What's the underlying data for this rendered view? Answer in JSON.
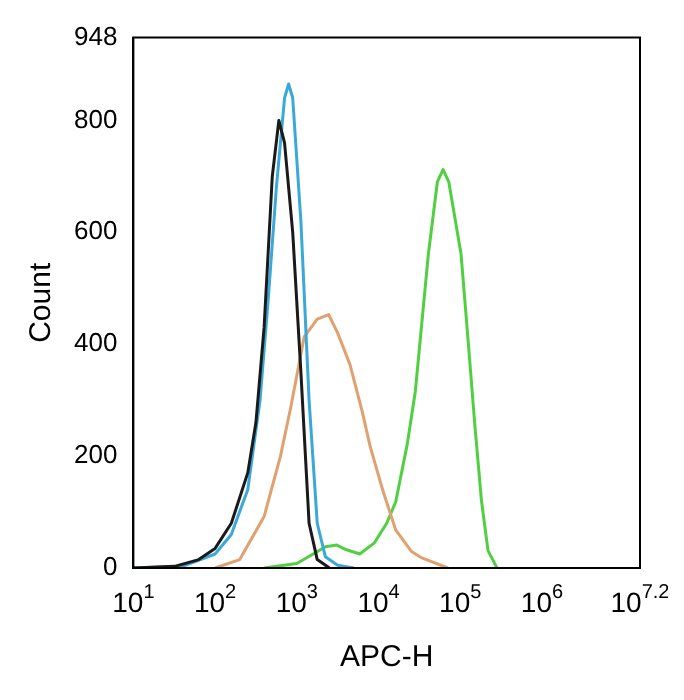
{
  "chart_data": {
    "type": "line",
    "xlabel": "APC-H",
    "ylabel": "Count",
    "log": "x",
    "grid": false,
    "legend": false,
    "marker": "none",
    "line_style": "solid",
    "xlim": [
      10,
      15848932
    ],
    "ylim": [
      0,
      948
    ],
    "xticks": [
      {
        "value": 10,
        "label": "10$^{1}$"
      },
      {
        "value": 100,
        "label": "10$^{2}$"
      },
      {
        "value": 1000,
        "label": "10$^{3}$"
      },
      {
        "value": 10000,
        "label": "10$^{4}$"
      },
      {
        "value": 100000,
        "label": "10$^{5}$"
      },
      {
        "value": 1000000,
        "label": "10$^{6}$"
      },
      {
        "value": 15848932,
        "label": "10$^{7.2}$"
      }
    ],
    "yticks": [
      0,
      200,
      400,
      600,
      800,
      948
    ],
    "series": [
      {
        "color": "#1a1a1a",
        "x": [
          10,
          32,
          63,
          100,
          158,
          251,
          316,
          398,
          501,
          603,
          708,
          891,
          1122,
          1413,
          1778,
          2512
        ],
        "values": [
          0,
          3,
          15,
          35,
          80,
          170,
          260,
          430,
          700,
          800,
          760,
          600,
          350,
          80,
          15,
          0
        ]
      },
      {
        "color": "#3aa8d8",
        "x": [
          10,
          40,
          100,
          158,
          251,
          355,
          447,
          562,
          708,
          794,
          891,
          1122,
          1413,
          1778,
          2239,
          3162,
          5012
        ],
        "values": [
          0,
          3,
          25,
          60,
          140,
          300,
          480,
          680,
          840,
          865,
          840,
          620,
          300,
          80,
          20,
          5,
          0
        ]
      },
      {
        "color": "#e0a070",
        "x": [
          100,
          200,
          398,
          631,
          851,
          1230,
          1778,
          2455,
          3162,
          4467,
          6310,
          7943,
          11220,
          16220,
          25120,
          33880,
          70790
        ],
        "values": [
          0,
          15,
          92,
          200,
          290,
          413,
          445,
          453,
          420,
          364,
          280,
          216,
          140,
          68,
          30,
          18,
          0
        ]
      },
      {
        "color": "#50d040",
        "x": [
          398,
          1000,
          1585,
          2239,
          3090,
          3981,
          5888,
          8913,
          12590,
          16220,
          22390,
          28180,
          40740,
          52480,
          61660,
          72440,
          102300,
          125900,
          151400,
          182000,
          218800,
          281800
        ],
        "values": [
          0,
          8,
          25,
          38,
          41,
          33,
          25,
          45,
          80,
          118,
          220,
          315,
          561,
          690,
          712,
          690,
          561,
          400,
          253,
          120,
          31,
          0
        ]
      }
    ]
  }
}
